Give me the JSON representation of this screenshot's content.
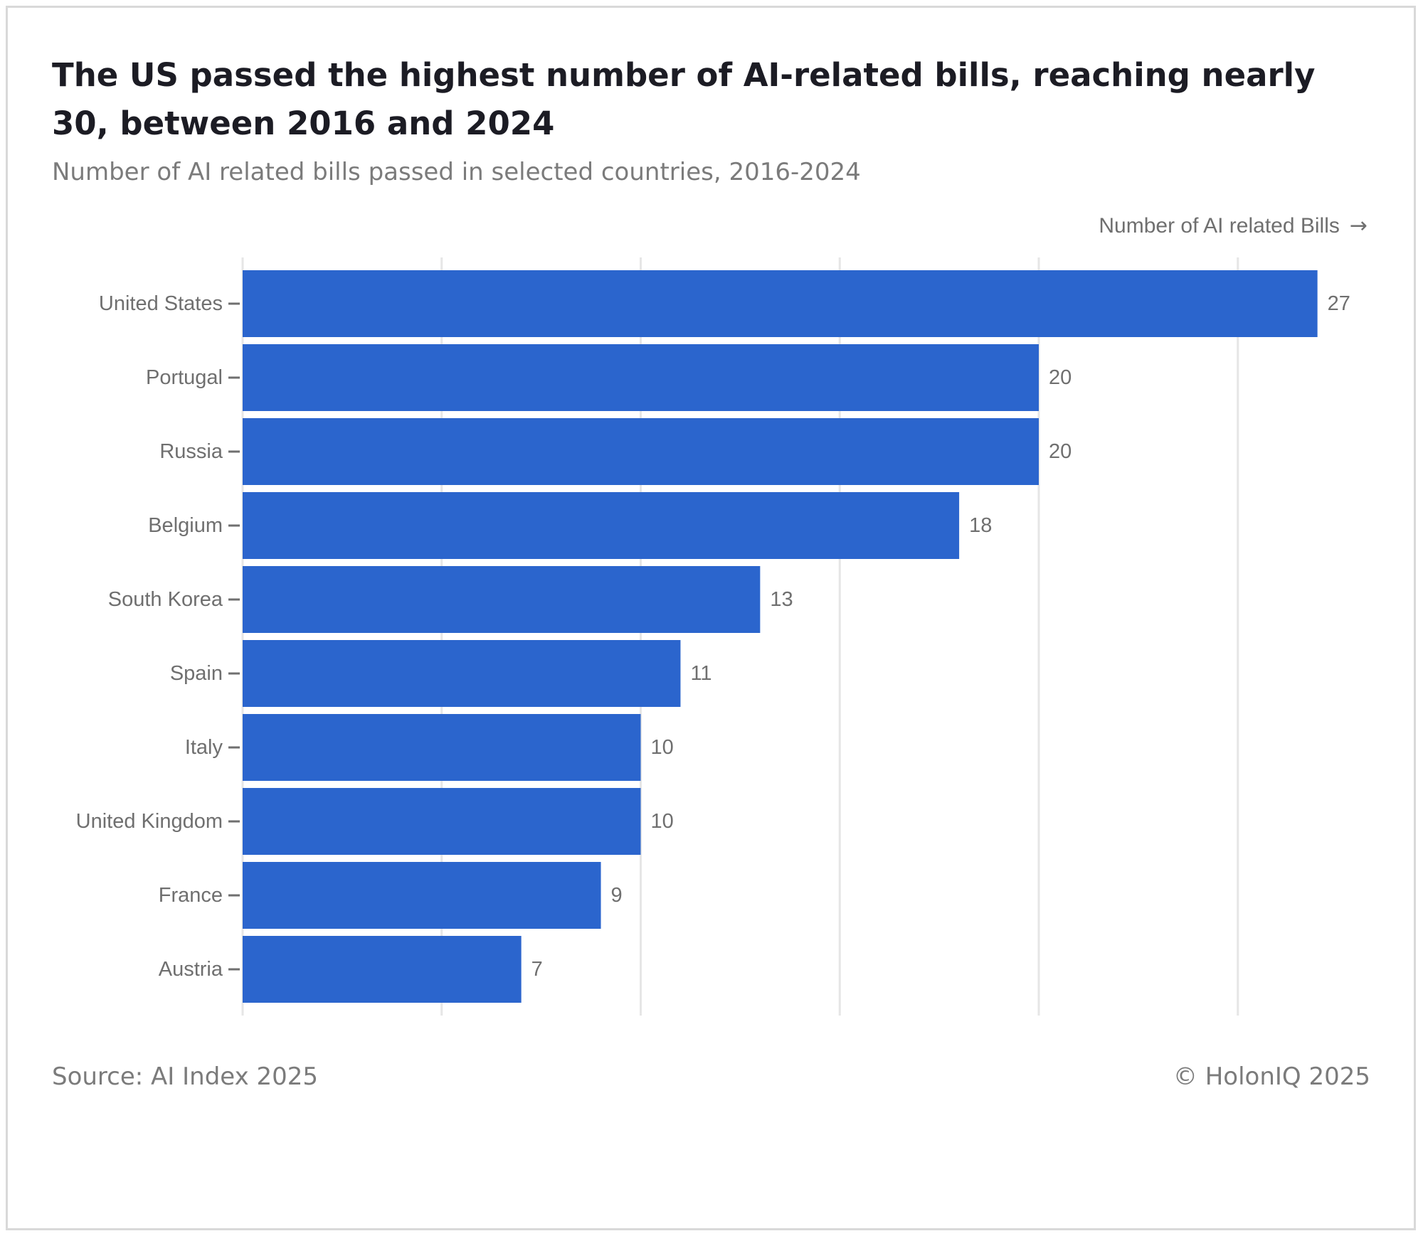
{
  "header": {
    "title": "The US passed the highest number of AI-related bills, reaching nearly 30, between 2016 and 2024",
    "subtitle": "Number of AI related bills passed in selected countries, 2016-2024"
  },
  "axis_caption": {
    "label": "Number of AI related Bills",
    "arrow": "→"
  },
  "footer": {
    "source": "Source: AI Index 2025",
    "copyright": "© HolonIQ 2025"
  },
  "colors": {
    "bar": "#2b65cd",
    "grid": "#e6e6e6",
    "label": "#6f6f6f",
    "tick": "#6f6f6f"
  },
  "chart_data": {
    "type": "bar",
    "orientation": "horizontal",
    "title": "The US passed the highest number of AI-related bills, reaching nearly 30, between 2016 and 2024",
    "subtitle": "Number of AI related bills passed in selected countries, 2016-2024",
    "xlabel": "Number of AI related Bills",
    "ylabel": "",
    "xlim": [
      0,
      27.5
    ],
    "grid": true,
    "grid_values": [
      0,
      5,
      10,
      15,
      20,
      25
    ],
    "categories": [
      "United States",
      "Portugal",
      "Russia",
      "Belgium",
      "South Korea",
      "Spain",
      "Italy",
      "United Kingdom",
      "France",
      "Austria"
    ],
    "values": [
      27,
      20,
      20,
      18,
      13,
      11,
      10,
      10,
      9,
      7
    ]
  }
}
